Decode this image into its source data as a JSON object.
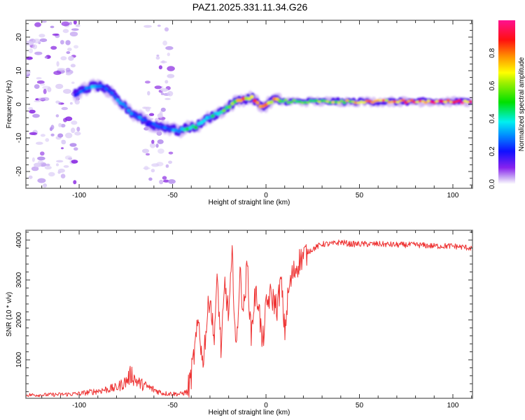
{
  "figure_title": "PAZ1.2025.331.11.34.G26",
  "chart_data": [
    {
      "type": "heatmap",
      "title": "PAZ1.2025.331.11.34.G26",
      "xlabel": "Height of straight line (km)",
      "ylabel": "Frequency (Hz)",
      "xlim": [
        -128.5,
        110.5
      ],
      "ylim": [
        -25,
        25
      ],
      "xticks": [
        -100,
        -50,
        0,
        50,
        100
      ],
      "xtick_labels": [
        "-100",
        "-50",
        "0",
        "50",
        "100"
      ],
      "yticks": [
        -20,
        -10,
        0,
        10,
        20
      ],
      "ytick_labels": [
        "-20",
        "-10",
        "0",
        "10",
        "20"
      ],
      "colorbar": {
        "label": "Normalized spectral amplitude",
        "range": [
          0,
          1
        ],
        "ticks": [
          0.0,
          0.2,
          0.4,
          0.6,
          0.8
        ],
        "tick_labels": [
          "0.0",
          "0.2",
          "0.4",
          "0.6",
          "0.8"
        ],
        "colormap": [
          "#ffffff",
          "#d8c8f8",
          "#8a2be2",
          "#1010ff",
          "#00e0ff",
          "#00e000",
          "#ffff00",
          "#ff8000",
          "#ff0000",
          "#ff0080"
        ]
      },
      "ridge": {
        "description": "Dominant frequency track vs height",
        "x": [
          -102,
          -97,
          -92,
          -87,
          -82,
          -77,
          -72,
          -67,
          -62,
          -57,
          -52,
          -47,
          -42,
          -37,
          -32,
          -27,
          -22,
          -17,
          -12,
          -7,
          -4,
          -2,
          2,
          5,
          8,
          15,
          30,
          50,
          70,
          90,
          110
        ],
        "y": [
          3,
          4.5,
          5.5,
          5,
          3,
          0,
          -2.5,
          -4,
          -6,
          -6.5,
          -7,
          -8,
          -7,
          -6.5,
          -4.5,
          -3,
          -1.5,
          0.5,
          1.5,
          2,
          0,
          -1,
          0.5,
          1.5,
          1,
          0.8,
          0.8,
          0.8,
          0.8,
          0.8,
          0.8
        ],
        "amplitude": [
          0.25,
          0.3,
          0.35,
          0.3,
          0.3,
          0.35,
          0.3,
          0.3,
          0.25,
          0.25,
          0.3,
          0.35,
          0.45,
          0.5,
          0.4,
          0.45,
          0.55,
          0.6,
          0.8,
          0.75,
          0.85,
          0.8,
          0.85,
          0.7,
          0.6,
          0.55,
          0.6,
          0.75,
          0.85,
          0.9,
          0.9
        ]
      },
      "noise_regions_km": [
        [
          -128.5,
          -100
        ],
        [
          -65,
          -50
        ]
      ]
    },
    {
      "type": "line",
      "title": "",
      "xlabel": "Height of straight line (km)",
      "ylabel": "SNR (10 * v/v)",
      "xlim": [
        -128.5,
        110.5
      ],
      "ylim": [
        35,
        4245
      ],
      "xticks": [
        -100,
        -50,
        0,
        50,
        100
      ],
      "xtick_labels": [
        "-100",
        "-50",
        "0",
        "50",
        "100"
      ],
      "yticks": [
        1000,
        2000,
        3000,
        4000
      ],
      "ytick_labels": [
        "1000",
        "2000",
        "3000",
        "4000"
      ],
      "color": "#ee3333",
      "series": [
        {
          "name": "SNR",
          "x": [
            -128,
            -120,
            -110,
            -100,
            -90,
            -80,
            -75,
            -72,
            -70,
            -68,
            -65,
            -60,
            -55,
            -50,
            -46,
            -42,
            -40,
            -38,
            -36,
            -34,
            -32,
            -30,
            -28,
            -26,
            -24,
            -22,
            -20,
            -18,
            -16,
            -14,
            -12,
            -10,
            -8,
            -6,
            -4,
            -2,
            0,
            2,
            4,
            6,
            8,
            10,
            12,
            14,
            16,
            18,
            20,
            22,
            24,
            26,
            28,
            30,
            35,
            40,
            45,
            50,
            60,
            70,
            80,
            90,
            100,
            110
          ],
          "y": [
            120,
            120,
            130,
            150,
            220,
            300,
            450,
            650,
            500,
            420,
            350,
            250,
            160,
            150,
            140,
            200,
            600,
            1300,
            2000,
            900,
            1800,
            2700,
            1500,
            3000,
            1200,
            2900,
            2100,
            3600,
            1100,
            3200,
            2200,
            3400,
            1600,
            2600,
            2500,
            1300,
            2300,
            2600,
            2500,
            2300,
            3000,
            1700,
            2700,
            3100,
            3300,
            3500,
            3600,
            3700,
            3750,
            3800,
            3850,
            3900,
            3900,
            3950,
            3900,
            3900,
            3900,
            3880,
            3880,
            3850,
            3850,
            3800
          ]
        }
      ]
    }
  ]
}
